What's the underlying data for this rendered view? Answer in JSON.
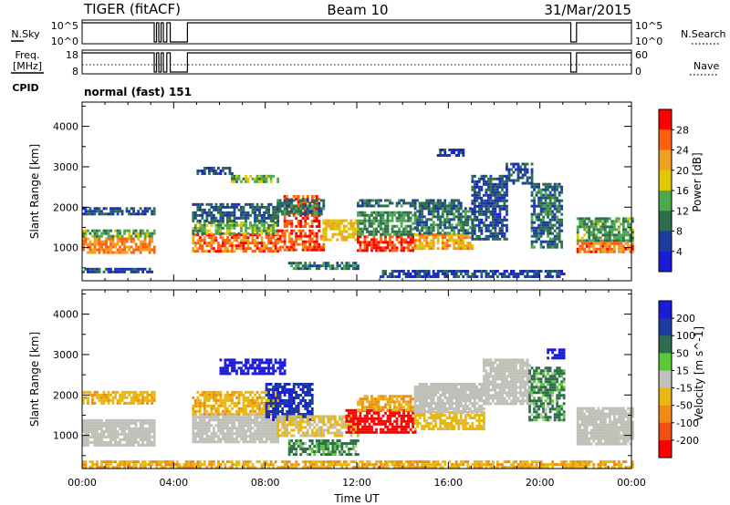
{
  "header": {
    "radar": "TIGER (fitACF)",
    "beam": "Beam 10",
    "date": "31/Mar/2015"
  },
  "sky_panel": {
    "left_label": "N.Sky",
    "left_ticks": [
      "10^5",
      "10^0"
    ],
    "right_ticks": [
      "10^5",
      "10^0"
    ],
    "right_label": "N.Search"
  },
  "freq_panel": {
    "left_label_1": "Freq.",
    "left_label_2": "[MHz]",
    "left_ticks": [
      "18",
      "8"
    ],
    "right_ticks": [
      "60",
      "0"
    ],
    "right_label": "Nave"
  },
  "cpid_panel": {
    "label": "CPID",
    "value": "normal (fast) 151"
  },
  "colors": {
    "power_scale": [
      "#1c1cd8",
      "#1c3ca0",
      "#2e6e4c",
      "#4ea84e",
      "#e0c800",
      "#f0a020",
      "#ff6010",
      "#ff0000"
    ],
    "velocity_scale": [
      "#1c1cd8",
      "#1c3ca0",
      "#2e6e4c",
      "#5cc838",
      "#c0c0b8",
      "#e8b810",
      "#f08c14",
      "#f05010",
      "#ff0000"
    ],
    "ground_scatter": "#c0c0b8"
  },
  "chart_data": [
    {
      "type": "heatmap",
      "name_field": "power",
      "xlabel": "",
      "ylabel": "Slant Range [km]",
      "x_ticks": [
        "00:00",
        "04:00",
        "08:00",
        "12:00",
        "16:00",
        "20:00",
        "00:00"
      ],
      "x_range_hours": [
        0,
        24
      ],
      "y_ticks": [
        1000,
        2000,
        3000,
        4000
      ],
      "y_range_km": [
        180,
        4600
      ],
      "colorbar": {
        "label": "Power [dB]",
        "ticks": [
          4,
          8,
          12,
          16,
          20,
          24,
          28
        ],
        "range": [
          0,
          32
        ]
      },
      "regions": [
        {
          "start": 0.0,
          "end": 3.2,
          "low": 850,
          "high": 1250,
          "level": 24
        },
        {
          "start": 0.0,
          "end": 3.2,
          "low": 1250,
          "high": 1450,
          "level": 14
        },
        {
          "start": 0.0,
          "end": 3.2,
          "low": 1800,
          "high": 2000,
          "level": 6
        },
        {
          "start": 0.0,
          "end": 3.2,
          "low": 400,
          "high": 500,
          "level": 6
        },
        {
          "start": 4.8,
          "end": 8.5,
          "low": 900,
          "high": 1350,
          "level": 26
        },
        {
          "start": 4.8,
          "end": 8.5,
          "low": 1350,
          "high": 1650,
          "level": 14
        },
        {
          "start": 4.8,
          "end": 8.5,
          "low": 1650,
          "high": 2100,
          "level": 8
        },
        {
          "start": 6.5,
          "end": 8.5,
          "low": 2600,
          "high": 2800,
          "level": 14
        },
        {
          "start": 5.0,
          "end": 6.5,
          "low": 2850,
          "high": 3000,
          "level": 7
        },
        {
          "start": 8.5,
          "end": 10.5,
          "low": 950,
          "high": 1450,
          "level": 26
        },
        {
          "start": 8.8,
          "end": 10.3,
          "low": 1500,
          "high": 2300,
          "level": 27
        },
        {
          "start": 8.5,
          "end": 10.5,
          "low": 1800,
          "high": 2200,
          "level": 10
        },
        {
          "start": 9.0,
          "end": 12.0,
          "low": 500,
          "high": 650,
          "level": 10
        },
        {
          "start": 10.5,
          "end": 12.0,
          "low": 1200,
          "high": 1700,
          "level": 20
        },
        {
          "start": 12.0,
          "end": 14.5,
          "low": 950,
          "high": 1300,
          "level": 28
        },
        {
          "start": 12.0,
          "end": 14.5,
          "low": 1300,
          "high": 1900,
          "level": 12
        },
        {
          "start": 14.5,
          "end": 17.0,
          "low": 1000,
          "high": 1350,
          "level": 22
        },
        {
          "start": 14.5,
          "end": 17.0,
          "low": 1350,
          "high": 2000,
          "level": 10
        },
        {
          "start": 12.0,
          "end": 16.5,
          "low": 2000,
          "high": 2200,
          "level": 9
        },
        {
          "start": 17.0,
          "end": 18.5,
          "low": 1200,
          "high": 2800,
          "level": 7
        },
        {
          "start": 18.5,
          "end": 19.6,
          "low": 2600,
          "high": 3100,
          "level": 7
        },
        {
          "start": 19.6,
          "end": 21.0,
          "low": 1000,
          "high": 2600,
          "level": 9
        },
        {
          "start": 21.6,
          "end": 24.0,
          "low": 900,
          "high": 1200,
          "level": 25
        },
        {
          "start": 21.6,
          "end": 24.0,
          "low": 1200,
          "high": 1750,
          "level": 13
        },
        {
          "start": 13.0,
          "end": 21.0,
          "low": 300,
          "high": 450,
          "level": 6
        },
        {
          "start": 15.5,
          "end": 16.6,
          "low": 3300,
          "high": 3450,
          "level": 5
        }
      ]
    },
    {
      "type": "heatmap",
      "name_field": "velocity",
      "xlabel": "Time UT",
      "ylabel": "Slant Range [km]",
      "x_ticks": [
        "00:00",
        "04:00",
        "08:00",
        "12:00",
        "16:00",
        "20:00",
        "00:00"
      ],
      "x_range_hours": [
        0,
        24
      ],
      "y_ticks": [
        1000,
        2000,
        3000,
        4000
      ],
      "y_range_km": [
        180,
        4600
      ],
      "colorbar": {
        "label": "Velocity [m s^-1]",
        "ticks": [
          "200",
          "100",
          "50",
          "15",
          "-15",
          "-50",
          "-100",
          "-200"
        ],
        "range": [
          -250,
          250
        ]
      },
      "regions": [
        {
          "start": 0.0,
          "end": 3.2,
          "low": 750,
          "high": 1400,
          "level": 0,
          "ground": true
        },
        {
          "start": 0.0,
          "end": 3.2,
          "low": 1800,
          "high": 2100,
          "level": -60
        },
        {
          "start": 4.8,
          "end": 8.5,
          "low": 850,
          "high": 1550,
          "level": 0,
          "ground": true
        },
        {
          "start": 4.8,
          "end": 8.5,
          "low": 1550,
          "high": 2100,
          "level": -60
        },
        {
          "start": 6.0,
          "end": 8.8,
          "low": 2550,
          "high": 2900,
          "level": 220
        },
        {
          "start": 8.0,
          "end": 10.0,
          "low": 1400,
          "high": 2300,
          "level": 140
        },
        {
          "start": 8.5,
          "end": 12.0,
          "low": 1000,
          "high": 1500,
          "level": -20
        },
        {
          "start": 9.0,
          "end": 12.0,
          "low": 500,
          "high": 900,
          "level": 40
        },
        {
          "start": 11.5,
          "end": 14.5,
          "low": 1100,
          "high": 1650,
          "level": -200
        },
        {
          "start": 12.0,
          "end": 14.5,
          "low": 1650,
          "high": 2000,
          "level": -80
        },
        {
          "start": 14.5,
          "end": 17.5,
          "low": 1150,
          "high": 1600,
          "level": -40
        },
        {
          "start": 14.5,
          "end": 17.5,
          "low": 1600,
          "high": 2300,
          "level": 0,
          "ground": true
        },
        {
          "start": 17.5,
          "end": 19.5,
          "low": 1800,
          "high": 2900,
          "level": 0,
          "ground": true
        },
        {
          "start": 19.5,
          "end": 21.0,
          "low": 1400,
          "high": 2700,
          "level": 40
        },
        {
          "start": 20.3,
          "end": 21.0,
          "low": 2900,
          "high": 3150,
          "level": 200
        },
        {
          "start": 21.6,
          "end": 24.0,
          "low": 800,
          "high": 1700,
          "level": 0,
          "ground": true
        },
        {
          "start": 0.0,
          "end": 24.0,
          "low": 230,
          "high": 380,
          "level": -70
        }
      ]
    }
  ]
}
